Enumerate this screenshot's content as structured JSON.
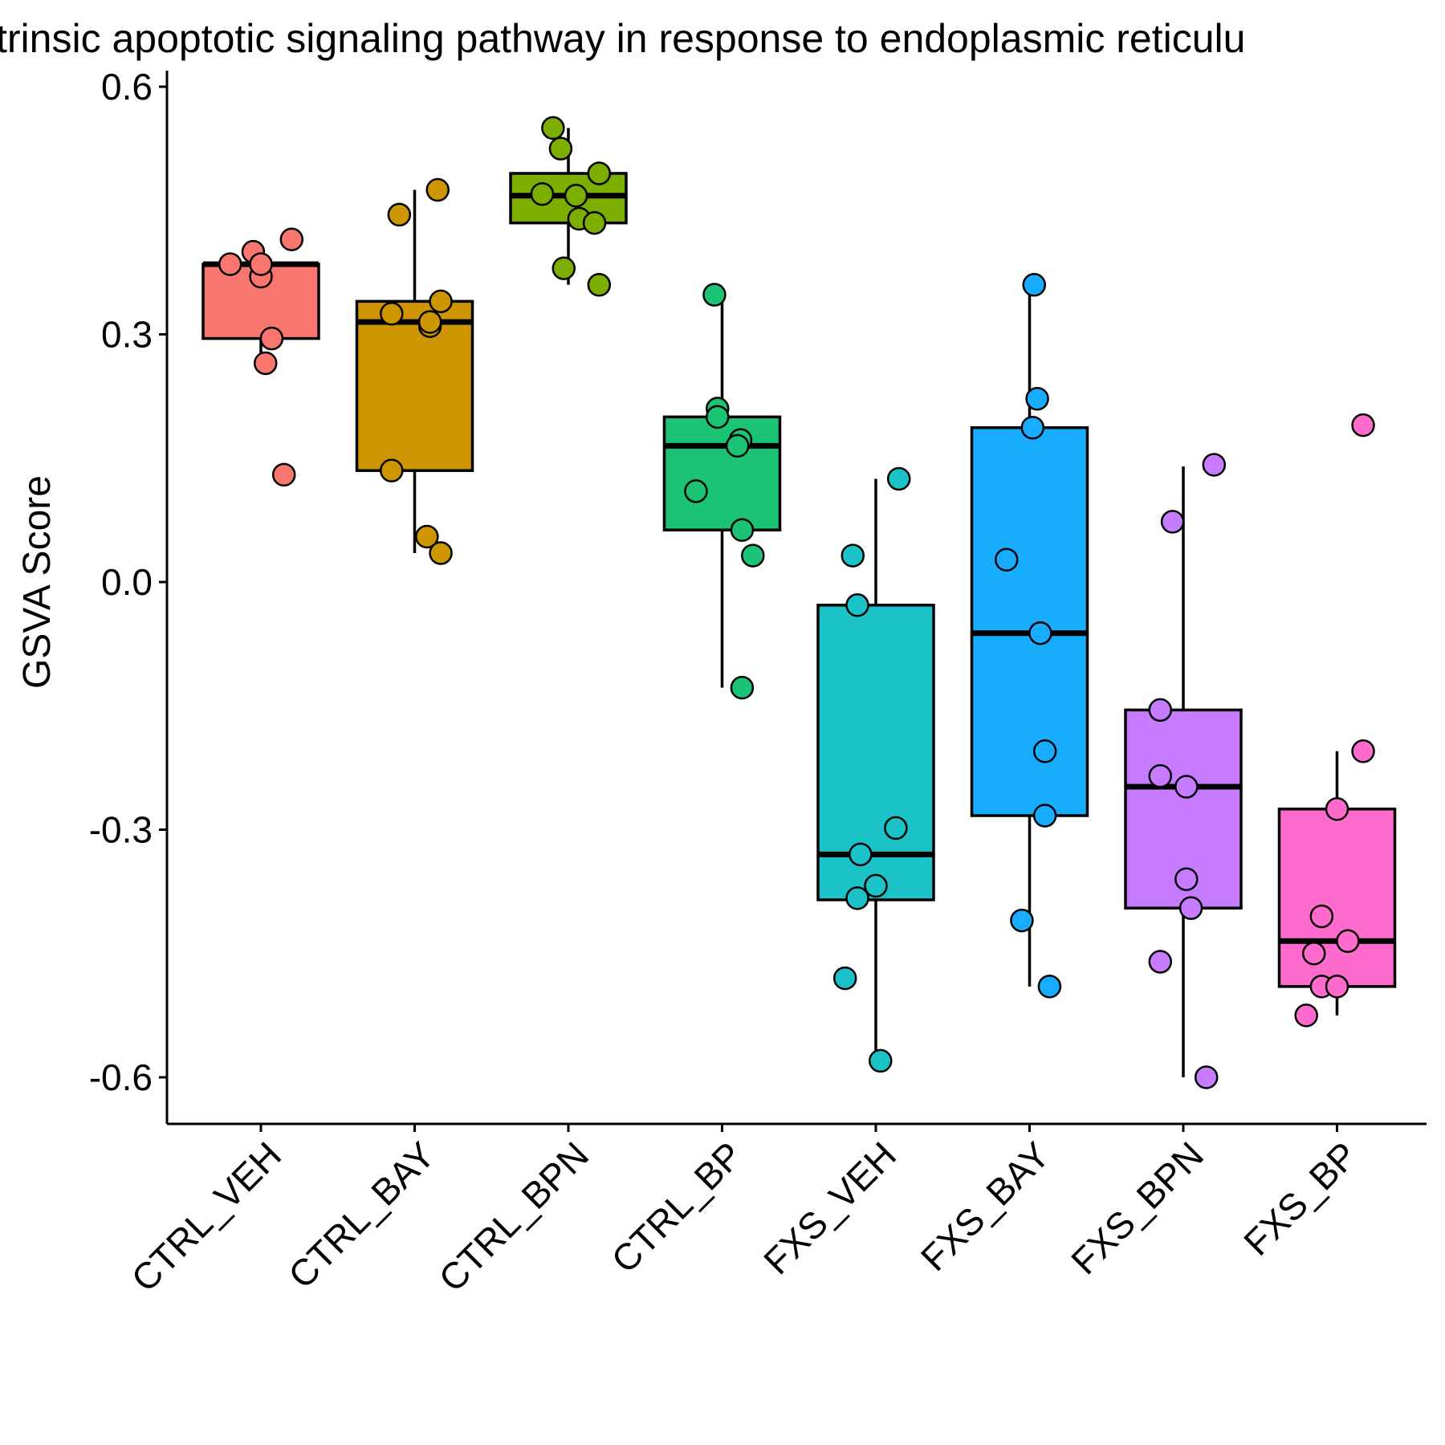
{
  "chart_data": {
    "type": "boxplot",
    "title": "trinsic apoptotic signaling pathway in response to endoplasmic reticulu",
    "xlabel": "",
    "ylabel": "GSVA Score",
    "ylim": [
      -0.66,
      0.61
    ],
    "yticks": [
      {
        "value": 0.6,
        "label": "0.6"
      },
      {
        "value": 0.3,
        "label": "0.3"
      },
      {
        "value": 0.0,
        "label": "0.0"
      },
      {
        "value": -0.3,
        "label": "-0.3"
      },
      {
        "value": -0.6,
        "label": "-0.6"
      }
    ],
    "grid": false,
    "legend": "none",
    "categories": [
      "CTRL_VEH",
      "CTRL_BAY",
      "CTRL_BPN",
      "CTRL_BP",
      "FXS_VEH",
      "FXS_BAY",
      "FXS_BPN",
      "FXS_BP"
    ],
    "groups": [
      {
        "name": "CTRL_VEH",
        "color": "#F8766D",
        "box": {
          "q1": 0.295,
          "median": 0.385,
          "q3": 0.385,
          "whisker_low": 0.265,
          "whisker_high": 0.385
        },
        "points": [
          {
            "jitter": -0.2,
            "y": 0.385
          },
          {
            "jitter": -0.05,
            "y": 0.4
          },
          {
            "jitter": 0.0,
            "y": 0.37
          },
          {
            "jitter": 0.2,
            "y": 0.415
          },
          {
            "jitter": 0.07,
            "y": 0.295
          },
          {
            "jitter": 0.03,
            "y": 0.265
          },
          {
            "jitter": 0.15,
            "y": 0.13
          },
          {
            "jitter": 0.0,
            "y": 0.385
          }
        ]
      },
      {
        "name": "CTRL_BAY",
        "color": "#CD9600",
        "box": {
          "q1": 0.135,
          "median": 0.315,
          "q3": 0.34,
          "whisker_low": 0.035,
          "whisker_high": 0.475
        },
        "points": [
          {
            "jitter": -0.1,
            "y": 0.445
          },
          {
            "jitter": 0.15,
            "y": 0.475
          },
          {
            "jitter": 0.17,
            "y": 0.34
          },
          {
            "jitter": -0.15,
            "y": 0.325
          },
          {
            "jitter": 0.1,
            "y": 0.31
          },
          {
            "jitter": 0.1,
            "y": 0.315
          },
          {
            "jitter": -0.15,
            "y": 0.135
          },
          {
            "jitter": 0.08,
            "y": 0.055
          },
          {
            "jitter": 0.17,
            "y": 0.035
          }
        ]
      },
      {
        "name": "CTRL_BPN",
        "color": "#7CAE00",
        "box": {
          "q1": 0.435,
          "median": 0.468,
          "q3": 0.495,
          "whisker_low": 0.36,
          "whisker_high": 0.55
        },
        "points": [
          {
            "jitter": -0.1,
            "y": 0.55
          },
          {
            "jitter": -0.05,
            "y": 0.525
          },
          {
            "jitter": 0.2,
            "y": 0.495
          },
          {
            "jitter": -0.17,
            "y": 0.47
          },
          {
            "jitter": 0.05,
            "y": 0.468
          },
          {
            "jitter": 0.07,
            "y": 0.44
          },
          {
            "jitter": 0.17,
            "y": 0.435
          },
          {
            "jitter": -0.03,
            "y": 0.38
          },
          {
            "jitter": 0.2,
            "y": 0.36
          }
        ]
      },
      {
        "name": "CTRL_BP",
        "color": "#1BC374",
        "box": {
          "q1": 0.063,
          "median": 0.165,
          "q3": 0.2,
          "whisker_low": -0.128,
          "whisker_high": 0.345
        },
        "points": [
          {
            "jitter": -0.05,
            "y": 0.348
          },
          {
            "jitter": -0.03,
            "y": 0.21
          },
          {
            "jitter": -0.03,
            "y": 0.2
          },
          {
            "jitter": 0.12,
            "y": 0.172
          },
          {
            "jitter": 0.1,
            "y": 0.165
          },
          {
            "jitter": -0.17,
            "y": 0.11
          },
          {
            "jitter": 0.13,
            "y": 0.063
          },
          {
            "jitter": 0.2,
            "y": 0.032
          },
          {
            "jitter": 0.13,
            "y": -0.128
          }
        ]
      },
      {
        "name": "FXS_VEH",
        "color": "#1BC3C8",
        "box": {
          "q1": -0.385,
          "median": -0.33,
          "q3": -0.028,
          "whisker_low": -0.575,
          "whisker_high": 0.125
        },
        "points": [
          {
            "jitter": 0.15,
            "y": 0.125
          },
          {
            "jitter": -0.15,
            "y": 0.032
          },
          {
            "jitter": -0.12,
            "y": -0.028
          },
          {
            "jitter": 0.13,
            "y": -0.298
          },
          {
            "jitter": -0.1,
            "y": -0.33
          },
          {
            "jitter": 0.0,
            "y": -0.368
          },
          {
            "jitter": -0.12,
            "y": -0.383
          },
          {
            "jitter": -0.2,
            "y": -0.48
          },
          {
            "jitter": 0.03,
            "y": -0.58
          }
        ]
      },
      {
        "name": "FXS_BAY",
        "color": "#18ACFF",
        "box": {
          "q1": -0.283,
          "median": -0.062,
          "q3": 0.187,
          "whisker_low": -0.49,
          "whisker_high": 0.36
        },
        "points": [
          {
            "jitter": 0.03,
            "y": 0.36
          },
          {
            "jitter": 0.05,
            "y": 0.222
          },
          {
            "jitter": 0.02,
            "y": 0.187
          },
          {
            "jitter": -0.15,
            "y": 0.027
          },
          {
            "jitter": 0.07,
            "y": -0.062
          },
          {
            "jitter": 0.1,
            "y": -0.205
          },
          {
            "jitter": 0.1,
            "y": -0.283
          },
          {
            "jitter": -0.05,
            "y": -0.41
          },
          {
            "jitter": 0.13,
            "y": -0.49
          }
        ]
      },
      {
        "name": "FXS_BPN",
        "color": "#C77CFF",
        "box": {
          "q1": -0.395,
          "median": -0.248,
          "q3": -0.155,
          "whisker_low": -0.6,
          "whisker_high": 0.14
        },
        "points": [
          {
            "jitter": 0.2,
            "y": 0.142
          },
          {
            "jitter": -0.07,
            "y": 0.073
          },
          {
            "jitter": -0.15,
            "y": -0.155
          },
          {
            "jitter": -0.15,
            "y": -0.235
          },
          {
            "jitter": 0.02,
            "y": -0.248
          },
          {
            "jitter": 0.02,
            "y": -0.36
          },
          {
            "jitter": 0.05,
            "y": -0.395
          },
          {
            "jitter": -0.15,
            "y": -0.46
          },
          {
            "jitter": 0.15,
            "y": -0.6
          }
        ]
      },
      {
        "name": "FXS_BP",
        "color": "#FF6BCC",
        "box": {
          "q1": -0.49,
          "median": -0.435,
          "q3": -0.275,
          "whisker_low": -0.525,
          "whisker_high": -0.205
        },
        "points": [
          {
            "jitter": 0.17,
            "y": 0.19
          },
          {
            "jitter": 0.17,
            "y": -0.205
          },
          {
            "jitter": 0.0,
            "y": -0.275
          },
          {
            "jitter": -0.1,
            "y": -0.405
          },
          {
            "jitter": 0.07,
            "y": -0.435
          },
          {
            "jitter": -0.15,
            "y": -0.45
          },
          {
            "jitter": -0.1,
            "y": -0.49
          },
          {
            "jitter": 0.0,
            "y": -0.49
          },
          {
            "jitter": -0.2,
            "y": -0.525
          }
        ]
      }
    ]
  }
}
